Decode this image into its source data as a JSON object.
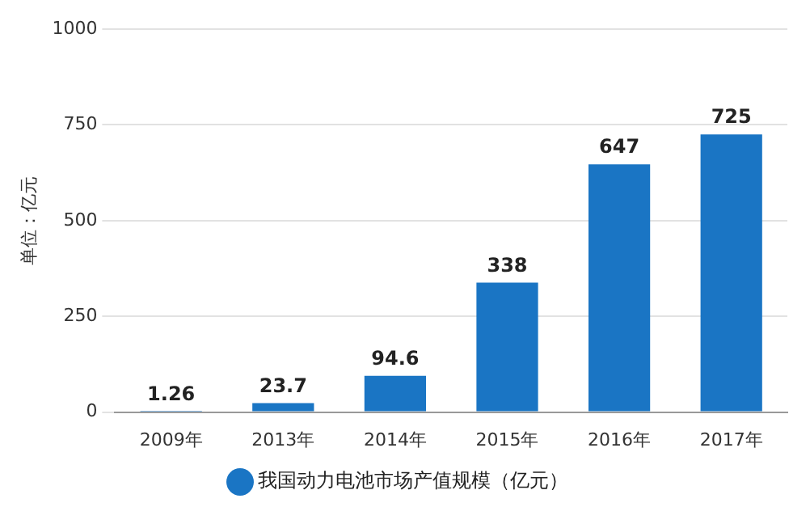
{
  "chart_data": {
    "type": "bar",
    "ylabel": "单位：亿元",
    "categories": [
      "2009年",
      "2013年",
      "2014年",
      "2015年",
      "2016年",
      "2017年"
    ],
    "series": [
      {
        "name": "我国动力电池市场产值规模（亿元）",
        "color": "#1a75c4",
        "values": [
          1.26,
          23.7,
          94.6,
          338,
          647,
          725
        ]
      }
    ],
    "ylim": [
      0,
      1000
    ],
    "yticks": [
      0,
      250,
      500,
      750,
      1000
    ],
    "grid": "y",
    "legend": "bottom",
    "data_labels": true
  }
}
